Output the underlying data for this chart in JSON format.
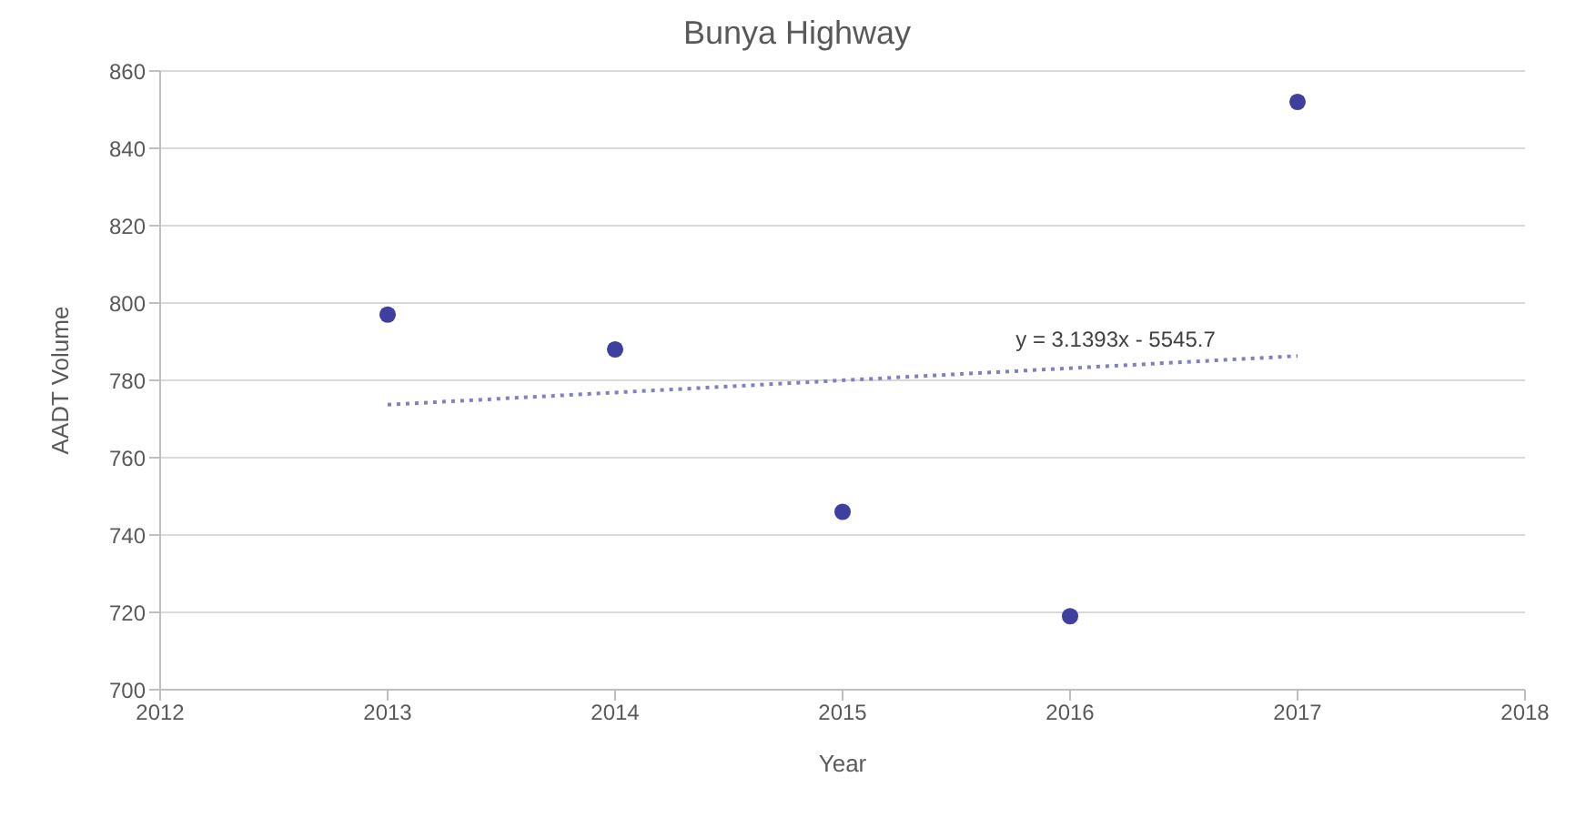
{
  "chart_data": {
    "type": "scatter",
    "title": "Bunya Highway",
    "xlabel": "Year",
    "ylabel": "AADT Volume",
    "xlim": [
      2012,
      2018
    ],
    "xticks": [
      2012,
      2013,
      2014,
      2015,
      2016,
      2017,
      2018
    ],
    "ylim": [
      700,
      860
    ],
    "yticks": [
      700,
      720,
      740,
      760,
      780,
      800,
      820,
      840,
      860
    ],
    "grid": "y",
    "marker": "circle",
    "series": [
      {
        "color": "#3f3f9f",
        "x": [
          2013,
          2014,
          2015,
          2016,
          2017
        ],
        "values": [
          797,
          788,
          746,
          719,
          852
        ]
      },
      {
        "type": "line",
        "color": "#8080c0",
        "line_style": "dotted",
        "marker": "none",
        "x": [
          2013,
          2017
        ],
        "values": [
          773.7,
          786.3
        ]
      }
    ],
    "annotations": [
      {
        "text": "y = 3.1393x - 5545.7",
        "x": 2016.2,
        "y": 786.3
      }
    ]
  }
}
